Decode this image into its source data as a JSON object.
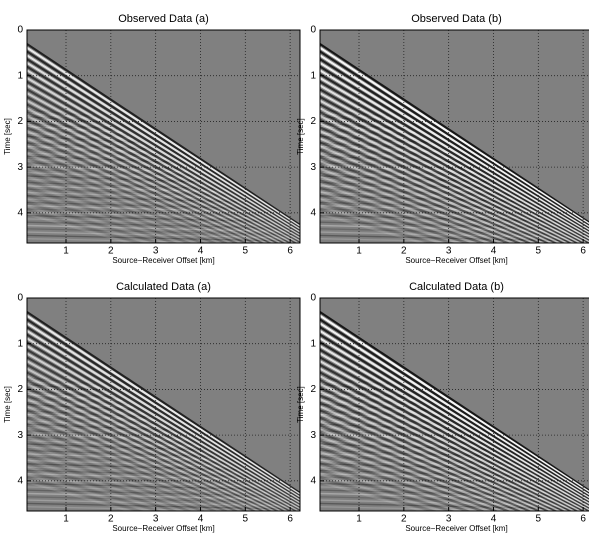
{
  "chart_data": [
    {
      "type": "image",
      "title": "Observed Data (a)",
      "xlabel": "Source−Receiver Offset [km]",
      "ylabel": "Time [sec]",
      "xlim": [
        0.13,
        6.22
      ],
      "ylim": [
        4.66,
        0
      ],
      "xticks": [
        1,
        2,
        3,
        4,
        5,
        6
      ],
      "yticks": [
        0,
        1,
        2,
        3,
        4
      ],
      "grid": true
    },
    {
      "type": "image",
      "title": "Observed Data (b)",
      "xlabel": "Source−Receiver Offset [km]",
      "ylabel": "Time [sec]",
      "xlim": [
        0.13,
        6.22
      ],
      "ylim": [
        4.66,
        0
      ],
      "xticks": [
        1,
        2,
        3,
        4,
        5,
        6
      ],
      "yticks": [
        0,
        1,
        2,
        3,
        4
      ],
      "grid": true
    },
    {
      "type": "image",
      "title": "Calculated Data (a)",
      "xlabel": "Source−Receiver Offset [km]",
      "ylabel": "Time [sec]",
      "xlim": [
        0.13,
        6.22
      ],
      "ylim": [
        4.66,
        0
      ],
      "xticks": [
        1,
        2,
        3,
        4,
        5,
        6
      ],
      "yticks": [
        0,
        1,
        2,
        3,
        4
      ],
      "grid": true
    },
    {
      "type": "image",
      "title": "Calculated Data (b)",
      "xlabel": "Source−Receiver Offset [km]",
      "ylabel": "Time [sec]",
      "xlim": [
        0.13,
        6.22
      ],
      "ylim": [
        4.66,
        0
      ],
      "xticks": [
        1,
        2,
        3,
        4,
        5,
        6
      ],
      "yticks": [
        0,
        1,
        2,
        3,
        4
      ],
      "grid": true
    }
  ]
}
